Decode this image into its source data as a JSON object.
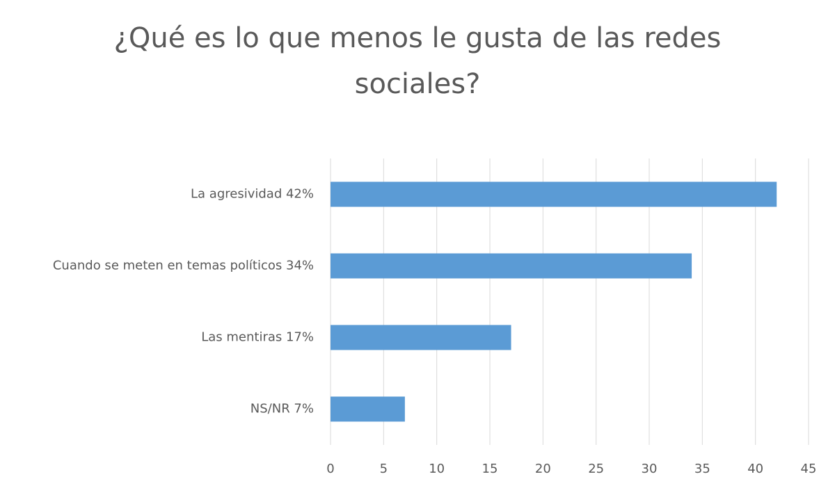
{
  "chart_data": {
    "type": "bar",
    "orientation": "horizontal",
    "title": "¿Qué es lo que menos le gusta de las redes sociales?",
    "categories": [
      "La agresividad  42%",
      "Cuando se meten en temas políticos  34%",
      "Las mentiras  17%",
      "NS/NR  7%"
    ],
    "values": [
      42,
      34,
      17,
      7
    ],
    "color": "#5b9bd5",
    "xlim": [
      0,
      45
    ],
    "xticks": [
      0,
      5,
      10,
      15,
      20,
      25,
      30,
      35,
      40,
      45
    ],
    "grid": true
  }
}
